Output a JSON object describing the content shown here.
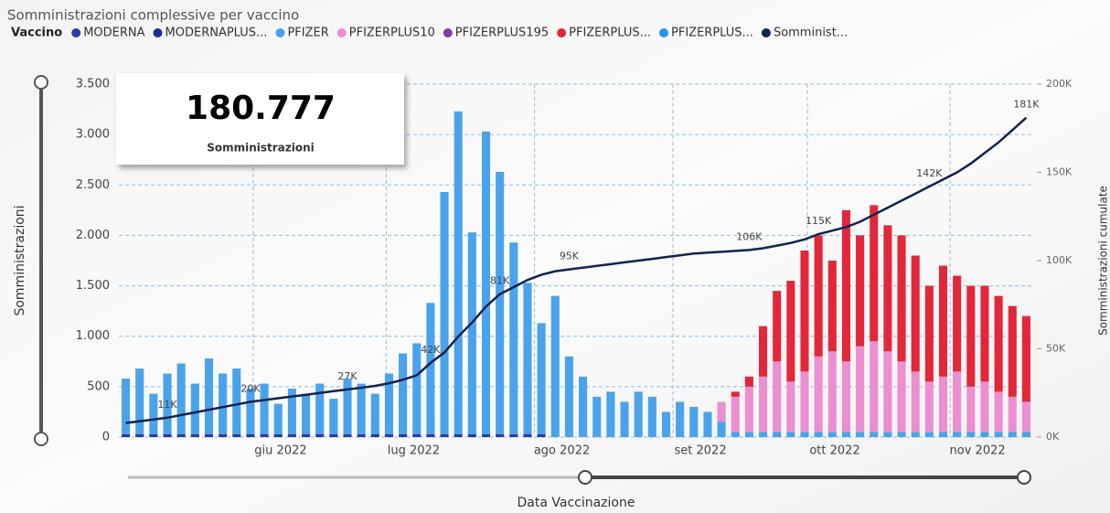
{
  "chart_data": {
    "type": "bar",
    "title": "Somministrazioni complessive per vaccino",
    "legend_title": "Vaccino",
    "y_label": "Somministrazioni",
    "y2_label": "Somministrazioni cumulate",
    "x_label": "Data Vaccinazione",
    "kpi": {
      "value": "180.777",
      "label": "Somministrazioni"
    },
    "grid": true,
    "categories": [
      null,
      null,
      null,
      null,
      null,
      null,
      null,
      null,
      null,
      null,
      null,
      null,
      null,
      null,
      null,
      null,
      null,
      null,
      null,
      null,
      null,
      null,
      null,
      null,
      null,
      null,
      null,
      null,
      null,
      null,
      null,
      null,
      null,
      null,
      null,
      null,
      null,
      null,
      null,
      null,
      null,
      null,
      null,
      null,
      null,
      null,
      null,
      null,
      null,
      null,
      null,
      null,
      null,
      null,
      null,
      null,
      null,
      null,
      null,
      null,
      null,
      null,
      null,
      null,
      null,
      null
    ],
    "xticks": [
      {
        "value": 9.7,
        "label": "giu 2022"
      },
      {
        "value": 19.3,
        "label": "lug 2022"
      },
      {
        "value": 30,
        "label": "ago 2022"
      },
      {
        "value": 40,
        "label": "set 2022"
      },
      {
        "value": 49.7,
        "label": "ott 2022"
      },
      {
        "value": 60,
        "label": "nov 2022"
      }
    ],
    "ylim": [
      0,
      3500
    ],
    "yticks": [
      0,
      500,
      {
        "value": 1000,
        "label": "1.000"
      },
      {
        "value": 1500,
        "label": "1.500"
      },
      {
        "value": 2000,
        "label": "2.000"
      },
      {
        "value": 2500,
        "label": "2.500"
      },
      {
        "value": 3000,
        "label": "3.000"
      },
      {
        "value": 3500,
        "label": "3.500"
      }
    ],
    "y2lim": [
      0,
      200000
    ],
    "y2ticks": [
      {
        "value": 0,
        "label": "0K"
      },
      {
        "value": 50000,
        "label": "50K"
      },
      {
        "value": 100000,
        "label": "100K"
      },
      {
        "value": 150000,
        "label": "150K"
      },
      {
        "value": 200000,
        "label": "200K"
      }
    ],
    "series": [
      {
        "name": "MODERNA",
        "color": "#2b3a9e",
        "values": [
          30,
          30,
          30,
          30,
          30,
          30,
          30,
          30,
          30,
          30,
          30,
          30,
          30,
          30,
          30,
          30,
          30,
          30,
          30,
          30,
          30,
          30,
          30,
          30,
          30,
          30,
          30,
          30,
          30,
          30,
          30,
          0,
          0,
          0,
          0,
          0,
          0,
          0,
          0,
          0,
          0,
          0,
          0,
          0,
          0,
          0,
          0,
          0,
          0,
          0,
          0,
          0,
          0,
          0,
          0,
          0,
          0,
          0,
          0,
          0,
          0,
          0,
          0,
          0,
          0,
          0
        ]
      },
      {
        "name": "MODERNAPLUS...",
        "color": "#1f2d8f"
      },
      {
        "name": "PFIZER",
        "color": "#4aa3ea",
        "values": [
          550,
          650,
          400,
          600,
          700,
          500,
          750,
          600,
          650,
          450,
          500,
          300,
          450,
          400,
          500,
          350,
          550,
          500,
          400,
          600,
          800,
          900,
          1300,
          2400,
          3200,
          2000,
          3000,
          2600,
          1900,
          1500,
          1100,
          1400,
          800,
          600,
          400,
          450,
          350,
          450,
          400,
          250,
          350,
          300,
          250,
          150,
          50,
          50,
          50,
          50,
          50,
          50,
          50,
          50,
          50,
          50,
          50,
          50,
          50,
          50,
          50,
          50,
          50,
          50,
          50,
          50,
          50,
          50
        ]
      },
      {
        "name": "PFIZERPLUS10",
        "color": "#eb8fd0",
        "values": [
          0,
          0,
          0,
          0,
          0,
          0,
          0,
          0,
          0,
          0,
          0,
          0,
          0,
          0,
          0,
          0,
          0,
          0,
          0,
          0,
          0,
          0,
          0,
          0,
          0,
          0,
          0,
          0,
          0,
          0,
          0,
          0,
          0,
          0,
          0,
          0,
          0,
          0,
          0,
          0,
          0,
          0,
          0,
          200,
          350,
          450,
          550,
          700,
          500,
          600,
          750,
          800,
          700,
          850,
          900,
          800,
          700,
          600,
          500,
          550,
          600,
          450,
          500,
          400,
          350,
          300
        ]
      },
      {
        "name": "PFIZERPLUS195",
        "color": "#7d3fa8"
      },
      {
        "name": "PFIZERPLUS...",
        "color": "#e2273a",
        "values": [
          0,
          0,
          0,
          0,
          0,
          0,
          0,
          0,
          0,
          0,
          0,
          0,
          0,
          0,
          0,
          0,
          0,
          0,
          0,
          0,
          0,
          0,
          0,
          0,
          0,
          0,
          0,
          0,
          0,
          0,
          0,
          0,
          0,
          0,
          0,
          0,
          0,
          0,
          0,
          0,
          0,
          0,
          0,
          0,
          50,
          100,
          500,
          700,
          1000,
          1200,
          1200,
          900,
          1500,
          1100,
          1350,
          1250,
          1250,
          1150,
          950,
          1100,
          950,
          1000,
          950,
          950,
          900,
          850
        ]
      },
      {
        "name": "PFIZERPLUS...",
        "color": "#2196f3"
      },
      {
        "name": "Somminist...",
        "color": "#13224f",
        "axis": "y2",
        "values": [
          8000,
          9000,
          10000,
          11000,
          12500,
          14000,
          15500,
          17000,
          18500,
          20000,
          21000,
          22000,
          23000,
          24000,
          25000,
          26000,
          27000,
          28000,
          29000,
          30500,
          32500,
          35000,
          42000,
          48000,
          57000,
          65000,
          74000,
          81000,
          85000,
          89000,
          92000,
          94000,
          95000,
          96000,
          97000,
          98000,
          99000,
          100000,
          101000,
          102000,
          103000,
          104000,
          104500,
          105000,
          105500,
          106000,
          107000,
          108500,
          110000,
          112000,
          115000,
          117000,
          119000,
          122000,
          126000,
          130000,
          134000,
          138000,
          142000,
          146000,
          150000,
          155000,
          161000,
          167000,
          174000,
          181000
        ],
        "value_labels": [
          null,
          null,
          null,
          "11K",
          null,
          null,
          null,
          null,
          null,
          "20K",
          null,
          null,
          null,
          null,
          null,
          null,
          "27K",
          null,
          null,
          null,
          null,
          null,
          "42K",
          null,
          null,
          null,
          null,
          "81K",
          null,
          null,
          null,
          null,
          "95K",
          null,
          null,
          null,
          null,
          null,
          null,
          null,
          null,
          null,
          null,
          null,
          null,
          "106K",
          null,
          null,
          null,
          null,
          "115K",
          null,
          null,
          null,
          null,
          null,
          null,
          null,
          "142K",
          null,
          null,
          null,
          null,
          null,
          null,
          "181K"
        ]
      }
    ]
  }
}
